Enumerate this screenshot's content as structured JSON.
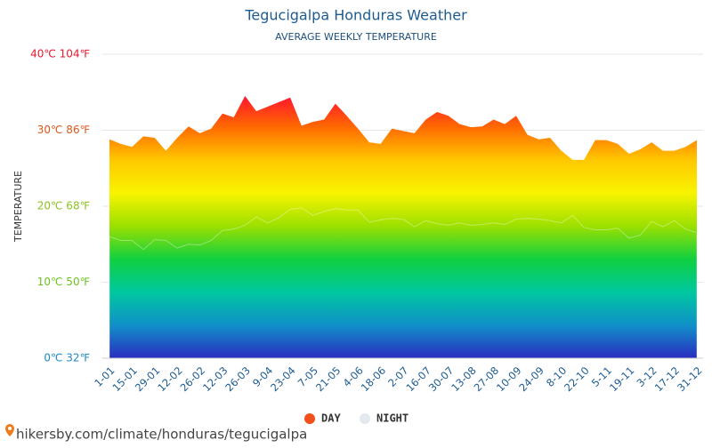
{
  "chart_data": {
    "type": "area",
    "title": "Tegucigalpa Honduras Weather",
    "subtitle": "AVERAGE WEEKLY TEMPERATURE",
    "y_label": "TEMPERATURE",
    "source": "hikersby.com/climate/honduras/tegucigalpa",
    "categories": [
      "1-01",
      null,
      "15-01",
      null,
      "29-01",
      null,
      "12-02",
      null,
      "26-02",
      null,
      "12-03",
      null,
      "26-03",
      null,
      "9-04",
      null,
      "23-04",
      null,
      "7-05",
      null,
      "21-05",
      null,
      "4-06",
      null,
      "18-06",
      null,
      "2-07",
      null,
      "16-07",
      null,
      "30-07",
      null,
      "13-08",
      null,
      "27-08",
      null,
      "10-09",
      null,
      "24-09",
      null,
      "8-10",
      null,
      "22-10",
      null,
      "5-11",
      null,
      "19-11",
      null,
      "3-12",
      null,
      "17-12",
      null,
      "31-12"
    ],
    "series": [
      {
        "name": "DAY",
        "color": "#f0501a",
        "values": [
          28.8,
          28.2,
          27.8,
          29.2,
          29.0,
          27.3,
          29.0,
          30.5,
          29.6,
          30.2,
          32.2,
          31.7,
          34.5,
          32.5,
          33.1,
          33.7,
          34.3,
          30.6,
          31.1,
          31.4,
          33.5,
          31.9,
          30.2,
          28.4,
          28.2,
          30.2,
          29.9,
          29.6,
          31.4,
          32.4,
          31.9,
          30.8,
          30.4,
          30.5,
          31.4,
          30.8,
          31.9,
          29.4,
          28.8,
          29.0,
          27.3,
          26.1,
          26.1,
          28.7,
          28.7,
          28.2,
          26.9,
          27.5,
          28.4,
          27.3,
          27.3,
          27.8,
          28.7
        ]
      },
      {
        "name": "NIGHT",
        "color": "#e4e9f0",
        "values": [
          16.0,
          15.5,
          15.5,
          14.3,
          15.6,
          15.5,
          14.5,
          15.0,
          14.9,
          15.5,
          16.8,
          17.0,
          17.5,
          18.6,
          17.8,
          18.5,
          19.6,
          19.8,
          18.8,
          19.3,
          19.7,
          19.5,
          19.5,
          17.9,
          18.2,
          18.4,
          18.3,
          17.3,
          18.1,
          17.7,
          17.5,
          17.8,
          17.5,
          17.6,
          17.8,
          17.6,
          18.3,
          18.4,
          18.3,
          18.1,
          17.8,
          18.8,
          17.2,
          16.9,
          16.9,
          17.1,
          15.8,
          16.2,
          18.0,
          17.3,
          18.1,
          17.0,
          16.5
        ]
      }
    ],
    "ylim": [
      0,
      40
    ],
    "yticks": [
      {
        "value": 0,
        "label": "0℃ 32℉"
      },
      {
        "value": 10,
        "label": "10℃ 50℉"
      },
      {
        "value": 20,
        "label": "20℃ 68℉"
      },
      {
        "value": 30,
        "label": "30℃ 86℉"
      },
      {
        "value": 40,
        "label": "40℃ 104℉"
      }
    ],
    "ytick_colors": [
      "#1f8bc6",
      "#6cc31f",
      "#8bc31f",
      "#e2561a",
      "#e8192c"
    ],
    "gradient_colors": [
      "#ff1030",
      "#ff6a00",
      "#ffc800",
      "#f8f400",
      "#9be000",
      "#10d040",
      "#00c8a0",
      "#1090c8",
      "#2a2cc0"
    ],
    "grid": true
  }
}
